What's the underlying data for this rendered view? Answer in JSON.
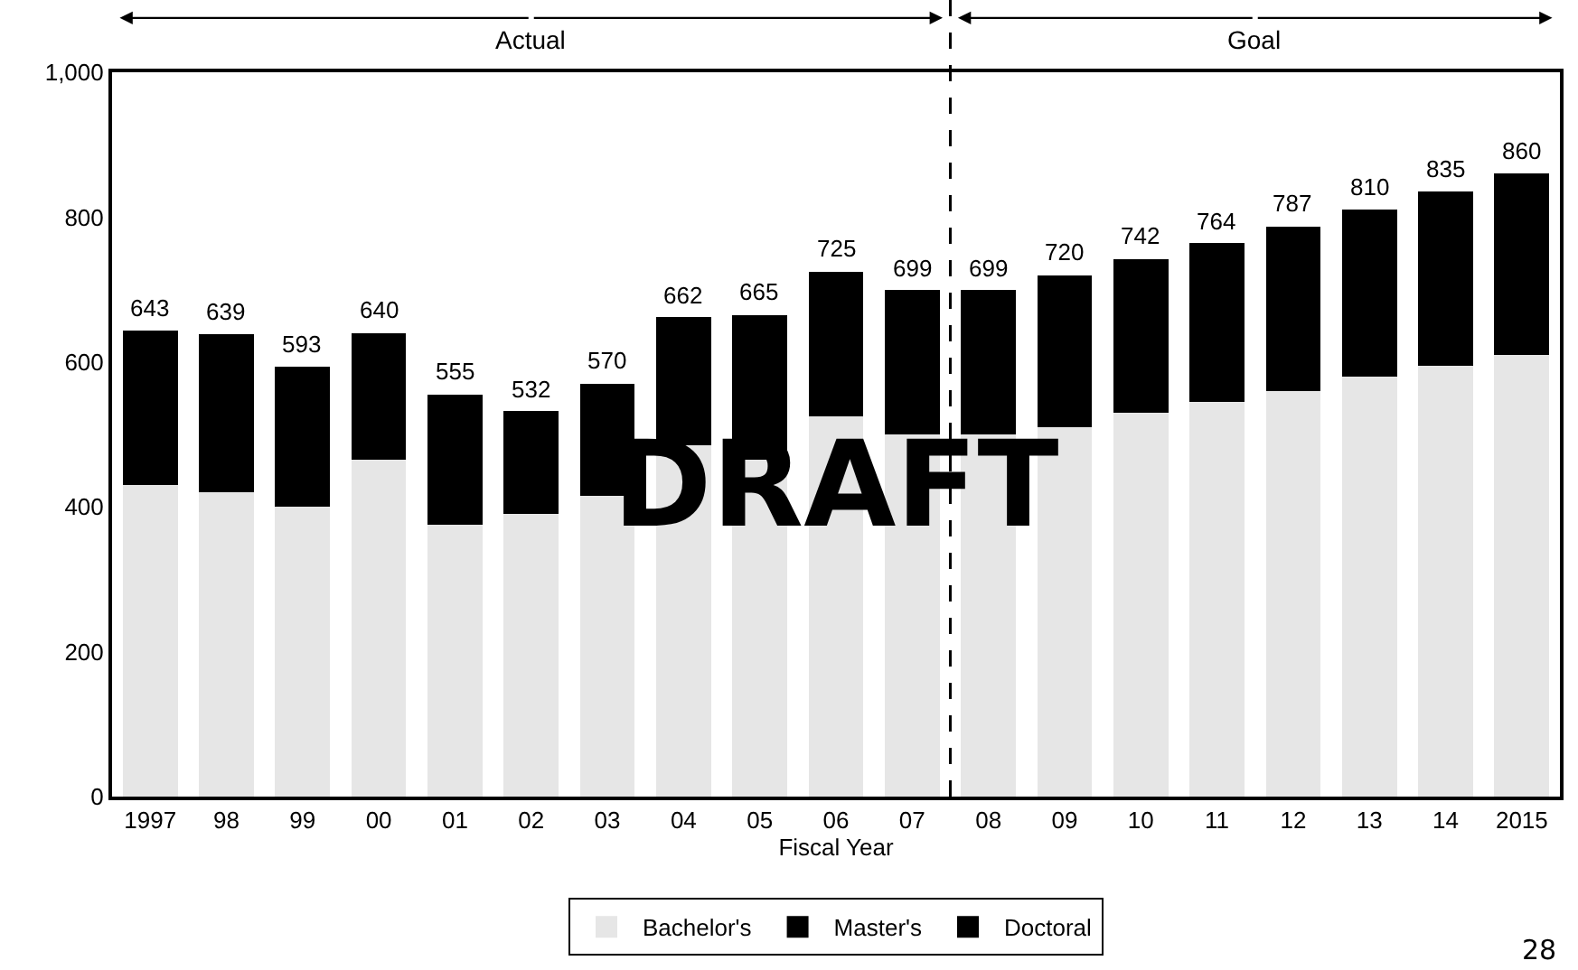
{
  "chart_data": {
    "type": "bar",
    "stacked": true,
    "xlabel": "Fiscal Year",
    "categories": [
      "1997",
      "98",
      "99",
      "00",
      "01",
      "02",
      "03",
      "04",
      "05",
      "06",
      "07",
      "08",
      "09",
      "10",
      "11",
      "12",
      "13",
      "14",
      "2015"
    ],
    "series": [
      {
        "name": "Bachelor's",
        "color": "#e6e6e6",
        "values": [
          430,
          420,
          400,
          465,
          375,
          390,
          415,
          485,
          465,
          525,
          500,
          500,
          510,
          530,
          545,
          560,
          580,
          595,
          610
        ]
      },
      {
        "name": "Master's",
        "color": "#000000",
        "values": [
          213,
          219,
          193,
          175,
          180,
          142,
          155,
          177,
          200,
          200,
          199,
          199,
          210,
          212,
          219,
          227,
          230,
          240,
          250
        ]
      },
      {
        "name": "Doctoral",
        "color": "#000000",
        "values": [
          null,
          null,
          null,
          null,
          null,
          null,
          null,
          null,
          null,
          null,
          null,
          null,
          null,
          null,
          null,
          null,
          null,
          null,
          null
        ]
      }
    ],
    "totals": [
      "643",
      "639",
      "593",
      "640",
      "555",
      "532",
      "570",
      "662",
      "665",
      "725",
      "699",
      "699",
      "720",
      "742",
      "764",
      "787",
      "810",
      "835",
      "860"
    ],
    "ylim": [
      0,
      1000
    ],
    "yticks": [
      0,
      200,
      400,
      600,
      800,
      {
        "value": 1000,
        "label": "1,000"
      }
    ],
    "legend": "bottom",
    "annotations": [
      "Actual",
      "Goal",
      "DRAFT",
      "28"
    ]
  }
}
